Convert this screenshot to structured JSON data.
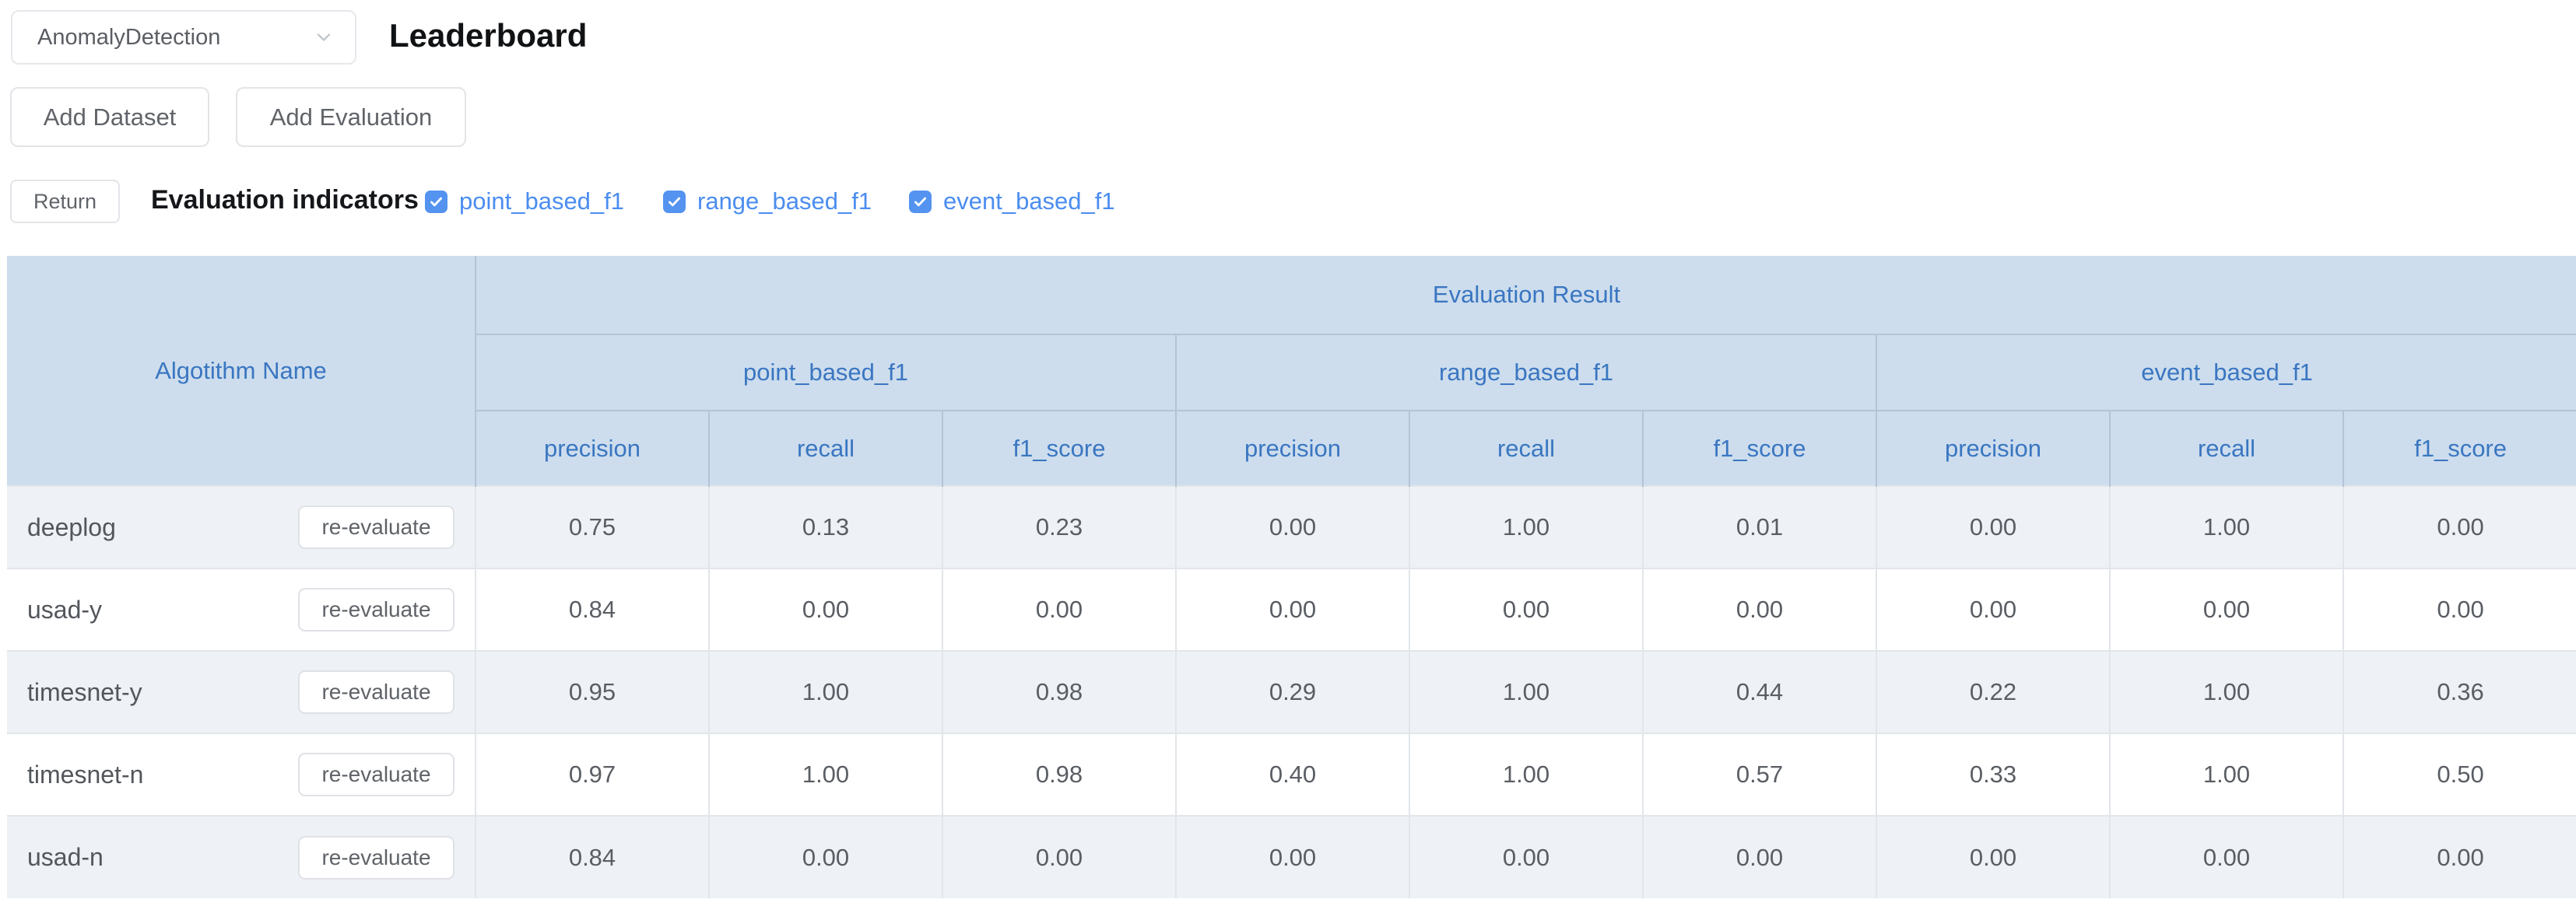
{
  "header": {
    "dataset_select_value": "AnomalyDetection",
    "title": "Leaderboard",
    "add_dataset_label": "Add Dataset",
    "add_evaluation_label": "Add Evaluation"
  },
  "toolbar": {
    "return_label": "Return",
    "indicators_label": "Evaluation indicators",
    "indicators": [
      {
        "label": "point_based_f1",
        "checked": true
      },
      {
        "label": "range_based_f1",
        "checked": true
      },
      {
        "label": "event_based_f1",
        "checked": true
      }
    ]
  },
  "table": {
    "algorithm_col_header": "Algotithm Name",
    "evaluation_result_header": "Evaluation Result",
    "groups": [
      {
        "label": "point_based_f1",
        "sub": [
          "precision",
          "recall",
          "f1_score"
        ]
      },
      {
        "label": "range_based_f1",
        "sub": [
          "precision",
          "recall",
          "f1_score"
        ]
      },
      {
        "label": "event_based_f1",
        "sub": [
          "precision",
          "recall",
          "f1_score"
        ]
      }
    ],
    "action_label": "re-evaluate",
    "rows": [
      {
        "name": "deeplog",
        "values": [
          "0.75",
          "0.13",
          "0.23",
          "0.00",
          "1.00",
          "0.01",
          "0.00",
          "1.00",
          "0.00"
        ]
      },
      {
        "name": "usad-y",
        "values": [
          "0.84",
          "0.00",
          "0.00",
          "0.00",
          "0.00",
          "0.00",
          "0.00",
          "0.00",
          "0.00"
        ]
      },
      {
        "name": "timesnet-y",
        "values": [
          "0.95",
          "1.00",
          "0.98",
          "0.29",
          "1.00",
          "0.44",
          "0.22",
          "1.00",
          "0.36"
        ]
      },
      {
        "name": "timesnet-n",
        "values": [
          "0.97",
          "1.00",
          "0.98",
          "0.40",
          "1.00",
          "0.57",
          "0.33",
          "1.00",
          "0.50"
        ]
      },
      {
        "name": "usad-n",
        "values": [
          "0.84",
          "0.00",
          "0.00",
          "0.00",
          "0.00",
          "0.00",
          "0.00",
          "0.00",
          "0.00"
        ]
      }
    ]
  },
  "colors": {
    "accent_blue": "#4b8df0",
    "checkbox_blue": "#5493f0",
    "header_bg": "#cddded",
    "header_text": "#3a76c1",
    "stripe_row_bg": "#eef1f6"
  }
}
